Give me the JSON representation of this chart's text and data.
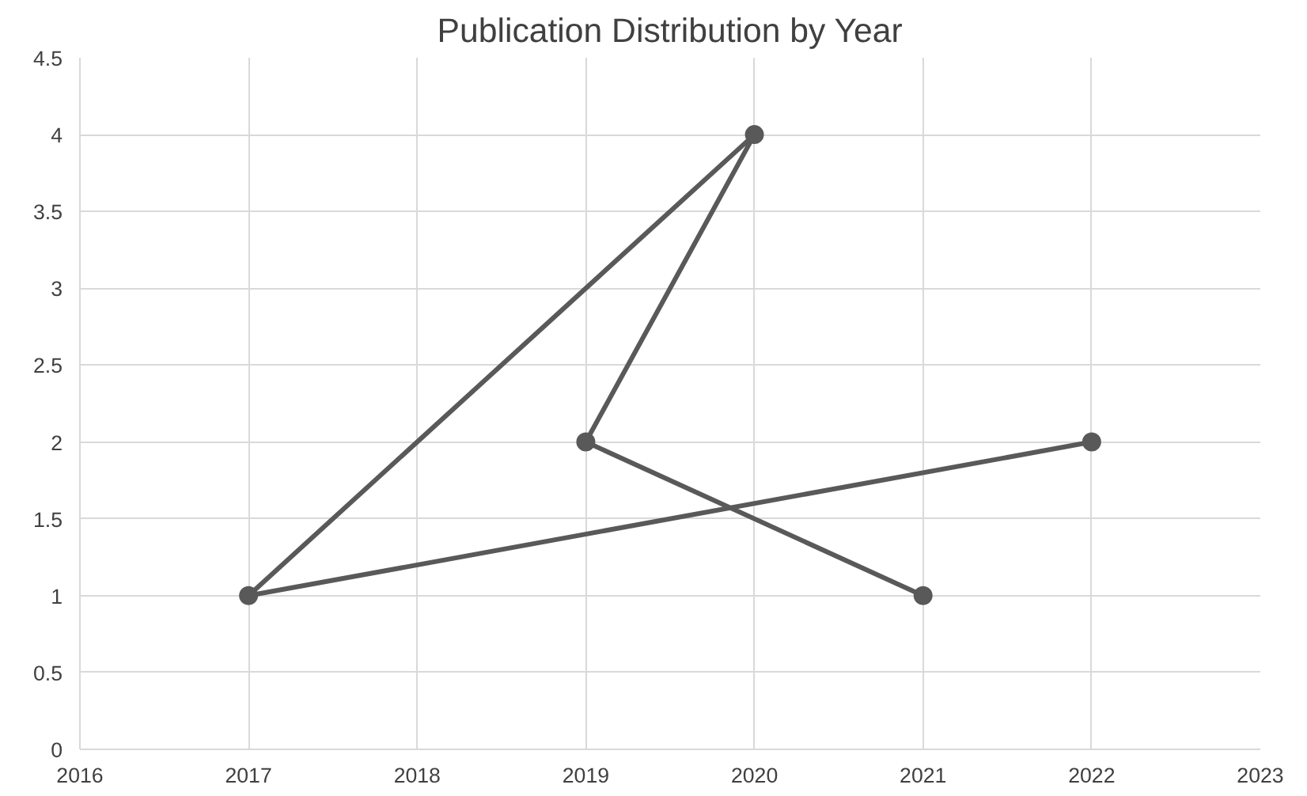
{
  "chart_data": {
    "type": "line",
    "title": "Publication Distribution by Year",
    "series": [
      {
        "color": "#595959",
        "x": [
          2021,
          2019,
          2020,
          2017,
          2022
        ],
        "values": [
          1,
          2,
          4,
          1,
          2
        ]
      }
    ],
    "xlim": [
      2016,
      2023
    ],
    "xticks": [
      2016,
      2017,
      2018,
      2019,
      2020,
      2021,
      2022,
      2023
    ],
    "ylim": [
      0,
      4.5
    ],
    "yticks": [
      0,
      0.5,
      1,
      1.5,
      2,
      2.5,
      3,
      3.5,
      4,
      4.5
    ],
    "grid": true,
    "marker": "circle",
    "line_style": "solid"
  }
}
